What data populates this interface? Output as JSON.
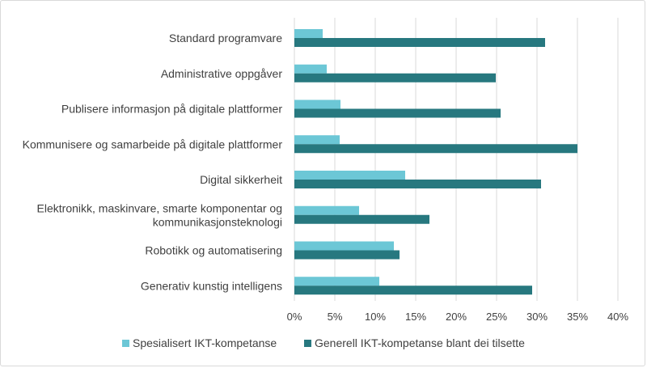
{
  "chart_data": {
    "type": "bar",
    "orientation": "horizontal",
    "categories": [
      "Standard programvare",
      "Administrative oppgåver",
      "Publisere informasjon på digitale plattformer",
      "Kommunisere og samarbeide på digitale plattformer",
      "Digital sikkerheit",
      "Elektronikk, maskinvare, smarte komponentar og kommunikasjonsteknologi",
      "Robotikk og automatisering",
      "Generativ kunstig intelligens"
    ],
    "category_lines": [
      [
        "Standard programvare"
      ],
      [
        "Administrative oppgåver"
      ],
      [
        "Publisere informasjon på digitale plattformer"
      ],
      [
        "Kommunisere og samarbeide på digitale plattformer"
      ],
      [
        "Digital sikkerheit"
      ],
      [
        "Elektronikk, maskinvare, smarte komponentar og",
        "kommunikasjonsteknologi"
      ],
      [
        "Robotikk og automatisering"
      ],
      [
        "Generativ kunstig intelligens"
      ]
    ],
    "series": [
      {
        "name": "Spesialisert IKT-kompetanse",
        "color": "#6cc7d6",
        "values": [
          3.5,
          4.0,
          5.7,
          5.6,
          13.7,
          8.0,
          12.3,
          10.5
        ]
      },
      {
        "name": "Generell IKT-kompetanse blant dei tilsette",
        "color": "#27787f",
        "values": [
          31.0,
          24.9,
          25.5,
          35.0,
          30.5,
          16.7,
          13.0,
          29.4
        ]
      }
    ],
    "xlim": [
      0,
      40
    ],
    "xticks": [
      0,
      5,
      10,
      15,
      20,
      25,
      30,
      35,
      40
    ],
    "xtick_labels": [
      "0%",
      "5%",
      "10%",
      "15%",
      "20%",
      "25%",
      "30%",
      "35%",
      "40%"
    ],
    "grid": "vertical",
    "legend": "bottom",
    "title": "",
    "xlabel": "",
    "ylabel": ""
  }
}
